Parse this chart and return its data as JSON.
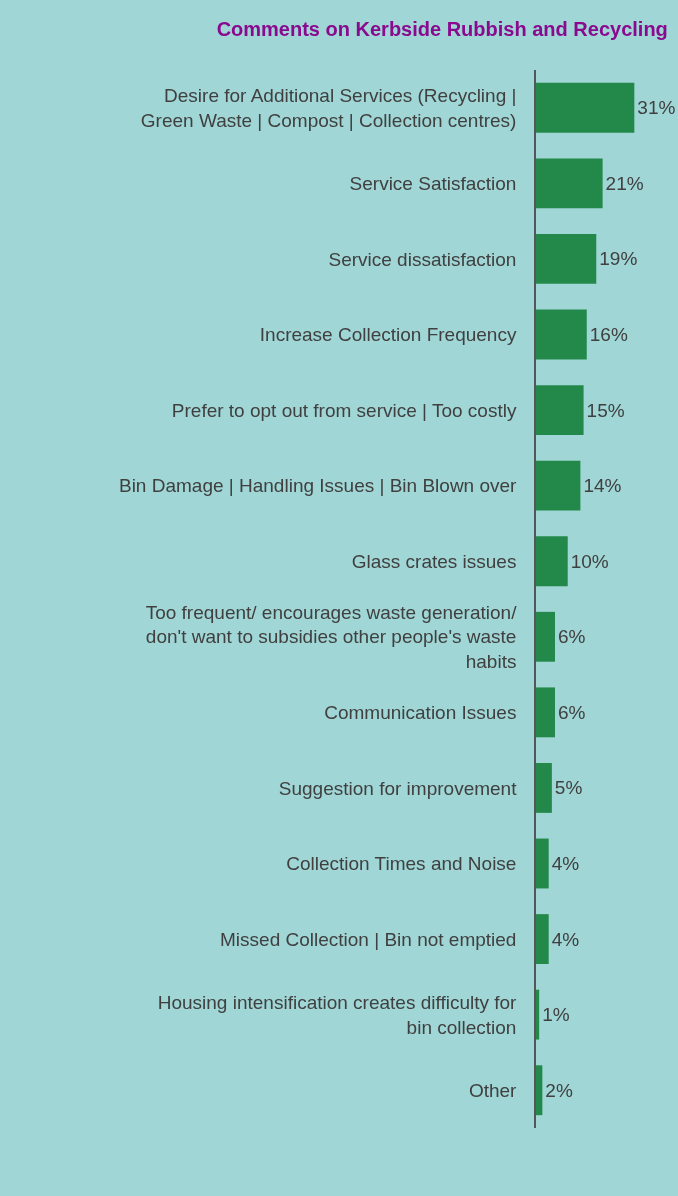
{
  "chart_data": {
    "type": "bar",
    "orientation": "horizontal",
    "title": "Comments on Kerbside Rubbish and Recycling",
    "categories": [
      "Desire for Additional Services (Recycling | Green Waste | Compost | Collection centres)",
      "Service Satisfaction",
      "Service dissatisfaction",
      "Increase Collection Frequency",
      "Prefer to opt out from service | Too costly",
      "Bin Damage | Handling Issues | Bin Blown over",
      "Glass crates issues",
      "Too frequent/ encourages waste generation/ don't want to subsidies other people's waste habits",
      "Communication Issues",
      "Suggestion for improvement",
      "Collection Times and Noise",
      "Missed Collection | Bin not emptied",
      "Housing intensification creates difficulty for bin collection",
      "Other"
    ],
    "values": [
      31,
      21,
      19,
      16,
      15,
      14,
      10,
      6,
      6,
      5,
      4,
      4,
      1,
      2
    ],
    "value_labels": [
      "31%",
      "21%",
      "19%",
      "16%",
      "15%",
      "14%",
      "10%",
      "6%",
      "6%",
      "5%",
      "4%",
      "4%",
      "1%",
      "2%"
    ],
    "color": "#23894a",
    "tick_labels": "y",
    "grid": false,
    "legend": false
  }
}
